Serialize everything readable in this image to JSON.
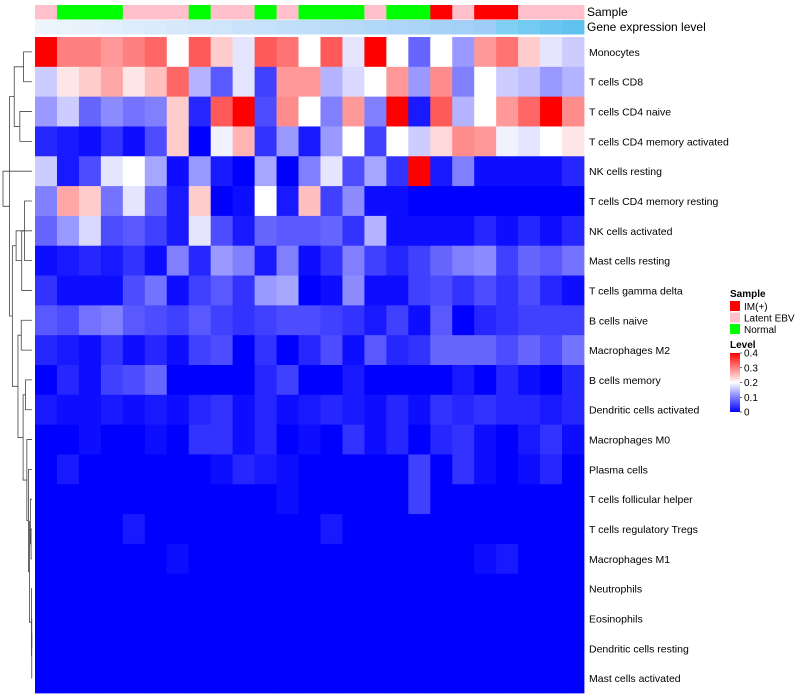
{
  "chart_data": {
    "type": "heatmap",
    "annotation_tracks": [
      "Sample",
      "Gene expression level"
    ],
    "sample_annotation": [
      "Latent EBV",
      "Normal",
      "Normal",
      "Normal",
      "Latent EBV",
      "Latent EBV",
      "Latent EBV",
      "Normal",
      "Latent EBV",
      "Latent EBV",
      "Normal",
      "Latent EBV",
      "Normal",
      "Normal",
      "Normal",
      "Latent EBV",
      "Normal",
      "Normal",
      "IM(+)",
      "Latent EBV",
      "IM(+)",
      "IM(+)",
      "Latent EBV",
      "Latent EBV",
      "Latent EBV"
    ],
    "expression_annotation": [
      "#eef4fc",
      "#eaf3fc",
      "#e6f1fc",
      "#e2effc",
      "#deedfb",
      "#daebfb",
      "#d6e9fb",
      "#d2e7fb",
      "#cee5fa",
      "#cae3fa",
      "#c6e1fa",
      "#c2dff9",
      "#bedef9",
      "#badcf9",
      "#b6daf8",
      "#b2d8f8",
      "#aed6f8",
      "#aad4f8",
      "#a6d2f7",
      "#a2d0f7",
      "#9ecef7",
      "#7fd0f3",
      "#74caf1",
      "#6ac6f0",
      "#5fc2ef"
    ],
    "rows": [
      "Monocytes",
      "T cells CD8",
      "T cells CD4 naive",
      "T cells CD4 memory activated",
      "NK cells resting",
      "T cells CD4 memory resting",
      "NK cells activated",
      "Mast cells resting",
      "T cells gamma delta",
      "B cells naive",
      "Macrophages M2",
      "B cells memory",
      "Dendritic cells activated",
      "Macrophages M0",
      "Plasma cells",
      "T cells follicular helper",
      "T cells regulatory  Tregs",
      "Macrophages M1",
      "Neutrophils",
      "Eosinophils",
      "Dendritic cells resting",
      "Mast cells activated"
    ],
    "values": [
      [
        0.4,
        0.3,
        0.3,
        0.28,
        0.3,
        0.32,
        0.2,
        0.33,
        0.24,
        0.18,
        0.33,
        0.31,
        0.2,
        0.33,
        0.18,
        0.4,
        0.2,
        0.08,
        0.2,
        0.12,
        0.28,
        0.31,
        0.24,
        0.18,
        0.16
      ],
      [
        0.16,
        0.22,
        0.24,
        0.27,
        0.22,
        0.25,
        0.32,
        0.14,
        0.07,
        0.18,
        0.05,
        0.28,
        0.28,
        0.14,
        0.17,
        0.2,
        0.28,
        0.12,
        0.29,
        0.1,
        0.2,
        0.16,
        0.15,
        0.12,
        0.14
      ],
      [
        0.12,
        0.16,
        0.08,
        0.11,
        0.09,
        0.1,
        0.24,
        0.03,
        0.33,
        0.4,
        0.06,
        0.29,
        0.2,
        0.1,
        0.28,
        0.1,
        0.4,
        0.02,
        0.33,
        0.14,
        0.2,
        0.28,
        0.32,
        0.4,
        0.29
      ],
      [
        0.03,
        0.02,
        0.01,
        0.04,
        0.01,
        0.06,
        0.24,
        0.0,
        0.19,
        0.26,
        0.04,
        0.12,
        0.02,
        0.12,
        0.2,
        0.05,
        0.2,
        0.16,
        0.23,
        0.29,
        0.28,
        0.19,
        0.18,
        0.2,
        0.22
      ],
      [
        0.16,
        0.02,
        0.06,
        0.18,
        0.2,
        0.13,
        0.01,
        0.12,
        0.02,
        0.0,
        0.13,
        0.0,
        0.1,
        0.18,
        0.06,
        0.13,
        0.04,
        0.4,
        0.02,
        0.1,
        0.01,
        0.01,
        0.01,
        0.01,
        0.03
      ],
      [
        0.1,
        0.27,
        0.24,
        0.09,
        0.18,
        0.08,
        0.02,
        0.24,
        0.0,
        0.01,
        0.2,
        0.02,
        0.25,
        0.05,
        0.11,
        0.01,
        0.01,
        0.0,
        0.0,
        0.0,
        0.0,
        0.0,
        0.0,
        0.0,
        0.0
      ],
      [
        0.08,
        0.12,
        0.17,
        0.06,
        0.07,
        0.05,
        0.02,
        0.18,
        0.06,
        0.02,
        0.08,
        0.07,
        0.07,
        0.08,
        0.04,
        0.14,
        0.01,
        0.01,
        0.01,
        0.01,
        0.03,
        0.01,
        0.03,
        0.01,
        0.03
      ],
      [
        0.01,
        0.02,
        0.03,
        0.02,
        0.04,
        0.01,
        0.1,
        0.03,
        0.12,
        0.1,
        0.02,
        0.1,
        0.01,
        0.04,
        0.1,
        0.05,
        0.03,
        0.05,
        0.08,
        0.1,
        0.11,
        0.05,
        0.08,
        0.07,
        0.09
      ],
      [
        0.04,
        0.01,
        0.01,
        0.01,
        0.06,
        0.09,
        0.01,
        0.05,
        0.07,
        0.04,
        0.12,
        0.13,
        0.0,
        0.01,
        0.11,
        0.01,
        0.01,
        0.05,
        0.06,
        0.04,
        0.06,
        0.04,
        0.06,
        0.03,
        0.01
      ],
      [
        0.07,
        0.06,
        0.09,
        0.1,
        0.07,
        0.06,
        0.05,
        0.07,
        0.05,
        0.04,
        0.05,
        0.06,
        0.06,
        0.05,
        0.04,
        0.02,
        0.05,
        0.01,
        0.07,
        0.0,
        0.03,
        0.04,
        0.05,
        0.05,
        0.05
      ],
      [
        0.03,
        0.02,
        0.01,
        0.04,
        0.01,
        0.03,
        0.01,
        0.05,
        0.06,
        0.0,
        0.04,
        0.0,
        0.03,
        0.06,
        0.01,
        0.07,
        0.03,
        0.04,
        0.08,
        0.08,
        0.08,
        0.06,
        0.08,
        0.06,
        0.09
      ],
      [
        0.0,
        0.03,
        0.01,
        0.05,
        0.06,
        0.08,
        0.0,
        0.0,
        0.0,
        0.0,
        0.03,
        0.05,
        0.0,
        0.0,
        0.02,
        0.0,
        0.0,
        0.0,
        0.0,
        0.02,
        0.0,
        0.03,
        0.01,
        0.0,
        0.03
      ],
      [
        0.02,
        0.01,
        0.01,
        0.02,
        0.01,
        0.02,
        0.01,
        0.03,
        0.04,
        0.01,
        0.03,
        0.01,
        0.02,
        0.03,
        0.02,
        0.01,
        0.03,
        0.01,
        0.04,
        0.03,
        0.04,
        0.03,
        0.03,
        0.02,
        0.03
      ],
      [
        0.0,
        0.0,
        0.01,
        0.0,
        0.0,
        0.01,
        0.0,
        0.04,
        0.04,
        0.01,
        0.03,
        0.0,
        0.01,
        0.0,
        0.04,
        0.01,
        0.03,
        0.0,
        0.03,
        0.04,
        0.01,
        0.0,
        0.02,
        0.04,
        0.01
      ],
      [
        0.0,
        0.02,
        0.0,
        0.0,
        0.0,
        0.0,
        0.0,
        0.0,
        0.01,
        0.03,
        0.02,
        0.01,
        0.0,
        0.0,
        0.0,
        0.0,
        0.0,
        0.05,
        0.0,
        0.04,
        0.01,
        0.0,
        0.01,
        0.03,
        0.0
      ],
      [
        0.0,
        0.0,
        0.0,
        0.0,
        0.0,
        0.0,
        0.0,
        0.0,
        0.0,
        0.0,
        0.0,
        0.01,
        0.0,
        0.0,
        0.0,
        0.0,
        0.0,
        0.05,
        0.0,
        0.0,
        0.0,
        0.0,
        0.0,
        0.0,
        0.0
      ],
      [
        0.0,
        0.0,
        0.0,
        0.0,
        0.02,
        0.0,
        0.0,
        0.0,
        0.0,
        0.0,
        0.0,
        0.0,
        0.0,
        0.02,
        0.0,
        0.0,
        0.0,
        0.0,
        0.0,
        0.0,
        0.0,
        0.0,
        0.0,
        0.0,
        0.0
      ],
      [
        0.0,
        0.0,
        0.0,
        0.0,
        0.0,
        0.0,
        0.01,
        0.0,
        0.0,
        0.0,
        0.0,
        0.0,
        0.0,
        0.0,
        0.0,
        0.0,
        0.0,
        0.0,
        0.0,
        0.0,
        0.01,
        0.02,
        0.0,
        0.0,
        0.0
      ],
      [
        0.0,
        0.0,
        0.0,
        0.0,
        0.0,
        0.0,
        0.0,
        0.0,
        0.0,
        0.0,
        0.0,
        0.0,
        0.0,
        0.0,
        0.0,
        0.0,
        0.0,
        0.0,
        0.0,
        0.0,
        0.0,
        0.0,
        0.0,
        0.0,
        0.0
      ],
      [
        0.0,
        0.0,
        0.0,
        0.0,
        0.0,
        0.0,
        0.0,
        0.0,
        0.0,
        0.0,
        0.0,
        0.0,
        0.0,
        0.0,
        0.0,
        0.0,
        0.0,
        0.0,
        0.0,
        0.0,
        0.0,
        0.0,
        0.0,
        0.0,
        0.0
      ],
      [
        0.0,
        0.0,
        0.0,
        0.0,
        0.0,
        0.0,
        0.0,
        0.0,
        0.0,
        0.0,
        0.0,
        0.0,
        0.0,
        0.0,
        0.0,
        0.0,
        0.0,
        0.0,
        0.0,
        0.0,
        0.0,
        0.0,
        0.0,
        0.0,
        0.0
      ],
      [
        0.0,
        0.0,
        0.0,
        0.0,
        0.0,
        0.0,
        0.0,
        0.0,
        0.0,
        0.0,
        0.0,
        0.0,
        0.0,
        0.0,
        0.0,
        0.0,
        0.0,
        0.0,
        0.0,
        0.0,
        0.0,
        0.0,
        0.0,
        0.0,
        0.0
      ]
    ],
    "color_scale": {
      "low": "#0000ff",
      "mid": "#ffffff",
      "high": "#ff0000",
      "min": 0,
      "mid_value": 0.2,
      "max": 0.4
    },
    "legend_position": "right",
    "legend": {
      "sample": {
        "title": "Sample",
        "entries": [
          {
            "label": "IM(+)",
            "color": "#ff0000"
          },
          {
            "label": "Latent EBV",
            "color": "#ffc0cb"
          },
          {
            "label": "Normal",
            "color": "#00ff00"
          }
        ]
      },
      "level": {
        "title": "Level",
        "ticks": [
          "0.4",
          "0.3",
          "0.2",
          "0.1",
          "0"
        ],
        "tick_values": [
          0.4,
          0.3,
          0.2,
          0.1,
          0
        ]
      }
    },
    "row_dendrogram": [
      [
        19,
        20
      ],
      [
        21,
        22
      ],
      [
        18,
        23
      ],
      [
        16,
        17
      ],
      [
        15,
        25
      ],
      [
        24,
        26
      ],
      [
        14,
        27
      ],
      [
        13,
        28
      ],
      [
        11,
        12
      ],
      [
        29,
        30
      ],
      [
        9,
        10
      ],
      [
        31,
        32
      ],
      [
        5,
        7
      ],
      [
        6,
        8
      ],
      [
        34,
        35
      ],
      [
        33,
        36
      ],
      [
        0,
        1
      ],
      [
        2,
        3
      ],
      [
        38,
        39
      ],
      [
        37,
        40
      ],
      [
        4,
        41
      ]
    ],
    "row_dendrogram_heights": [
      0.05,
      0.05,
      0.1,
      0.2,
      0.35,
      0.55,
      0.75,
      1.1,
      1.4,
      1.9,
      2.3,
      3.0,
      1.6,
      2.2,
      3.4,
      4.2,
      1.8,
      2.6,
      3.8,
      4.8,
      6.2
    ]
  }
}
